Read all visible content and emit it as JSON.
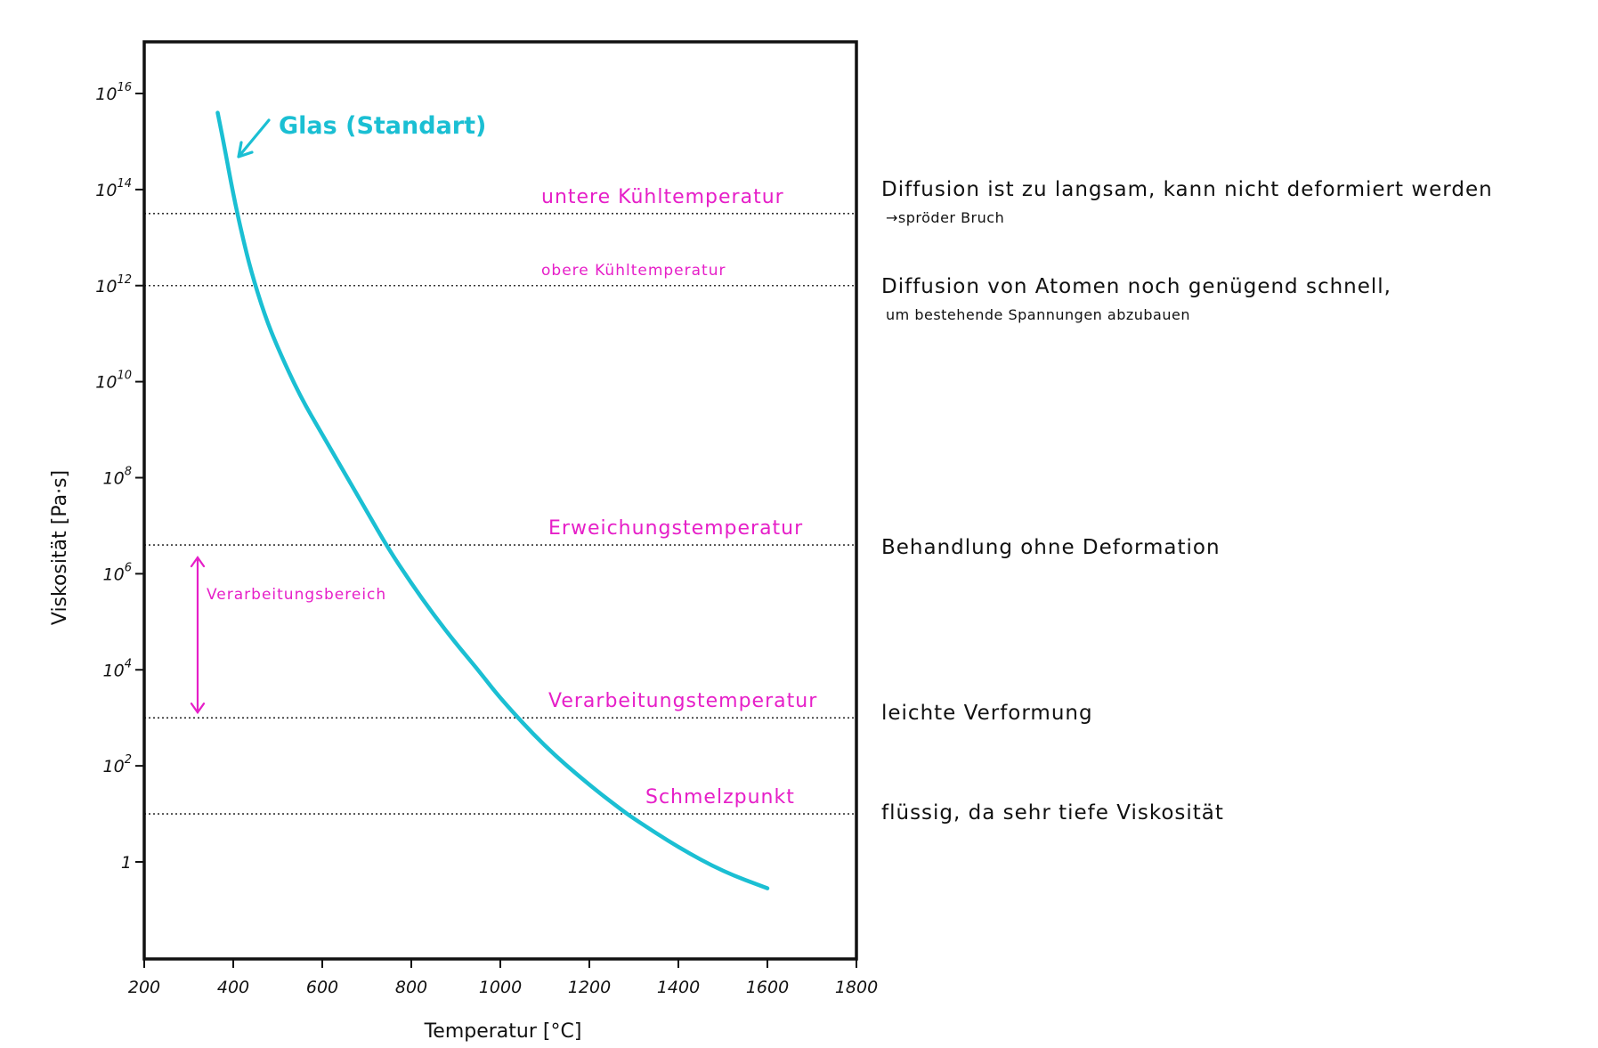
{
  "colors": {
    "curve": "#1bbfd3",
    "annotation": "#e61fc8",
    "ink": "#111111"
  },
  "chart_data": {
    "type": "line",
    "xlabel": "Temperatur [°C]",
    "ylabel": "Viskosität [Pa·s]",
    "xlim": [
      200,
      1800
    ],
    "ylim_log10": [
      -2,
      17.2
    ],
    "x_ticks": [
      {
        "value": 200,
        "label": "200"
      },
      {
        "value": 400,
        "label": "400"
      },
      {
        "value": 600,
        "label": "600"
      },
      {
        "value": 800,
        "label": "800"
      },
      {
        "value": 1000,
        "label": "1000"
      },
      {
        "value": 1200,
        "label": "1200"
      },
      {
        "value": 1400,
        "label": "1400"
      },
      {
        "value": 1600,
        "label": "1600"
      },
      {
        "value": 1800,
        "label": "1800"
      }
    ],
    "y_ticks": [
      {
        "log": 16,
        "base": "10",
        "exp": "16"
      },
      {
        "log": 14,
        "base": "10",
        "exp": "14"
      },
      {
        "log": 12,
        "base": "10",
        "exp": "12"
      },
      {
        "log": 10,
        "base": "10",
        "exp": "10"
      },
      {
        "log": 8,
        "base": "10",
        "exp": "8"
      },
      {
        "log": 6,
        "base": "10",
        "exp": "6"
      },
      {
        "log": 4,
        "base": "10",
        "exp": "4"
      },
      {
        "log": 2,
        "base": "10",
        "exp": "2"
      },
      {
        "log": 0,
        "base": "1",
        "exp": ""
      }
    ],
    "series": [
      {
        "name": "Glas (Standart)",
        "x": [
          365,
          380,
          400,
          420,
          440,
          470,
          500,
          550,
          600,
          650,
          700,
          750,
          800,
          850,
          900,
          950,
          1000,
          1100,
          1200,
          1270,
          1300,
          1400,
          1500,
          1600
        ],
        "y_log10": [
          15.6,
          14.9,
          13.9,
          13.05,
          12.3,
          11.4,
          10.7,
          9.7,
          8.9,
          8.1,
          7.3,
          6.5,
          5.8,
          5.15,
          4.55,
          4.0,
          3.4,
          2.4,
          1.6,
          1.1,
          0.9,
          0.3,
          -0.2,
          -0.55
        ]
      }
    ],
    "reference_lines": [
      {
        "y_log10": 13.5,
        "label": "untere Kühltemperatur",
        "note": "Diffusion ist zu langsam, kann nicht deformiert werden",
        "subnote": "→spröder Bruch"
      },
      {
        "y_log10": 12.0,
        "label": "obere Kühltemperatur",
        "note": "Diffusion von Atomen noch genügend schnell,",
        "subnote": "um bestehende Spannungen abzubauen"
      },
      {
        "y_log10": 6.6,
        "label": "Erweichungstemperatur",
        "note": "Behandlung ohne Deformation",
        "subnote": ""
      },
      {
        "y_log10": 3.0,
        "label": "Verarbeitungstemperatur",
        "note": "leichte Verformung",
        "subnote": ""
      },
      {
        "y_log10": 1.0,
        "label": "Schmelzpunkt",
        "note": "flüssig, da sehr tiefe Viskosität",
        "subnote": ""
      }
    ],
    "range_annotation": {
      "label": "Verarbeitungsbereich",
      "from_log10": 3.0,
      "to_log10": 6.6
    },
    "grid": false,
    "legend": "none"
  }
}
